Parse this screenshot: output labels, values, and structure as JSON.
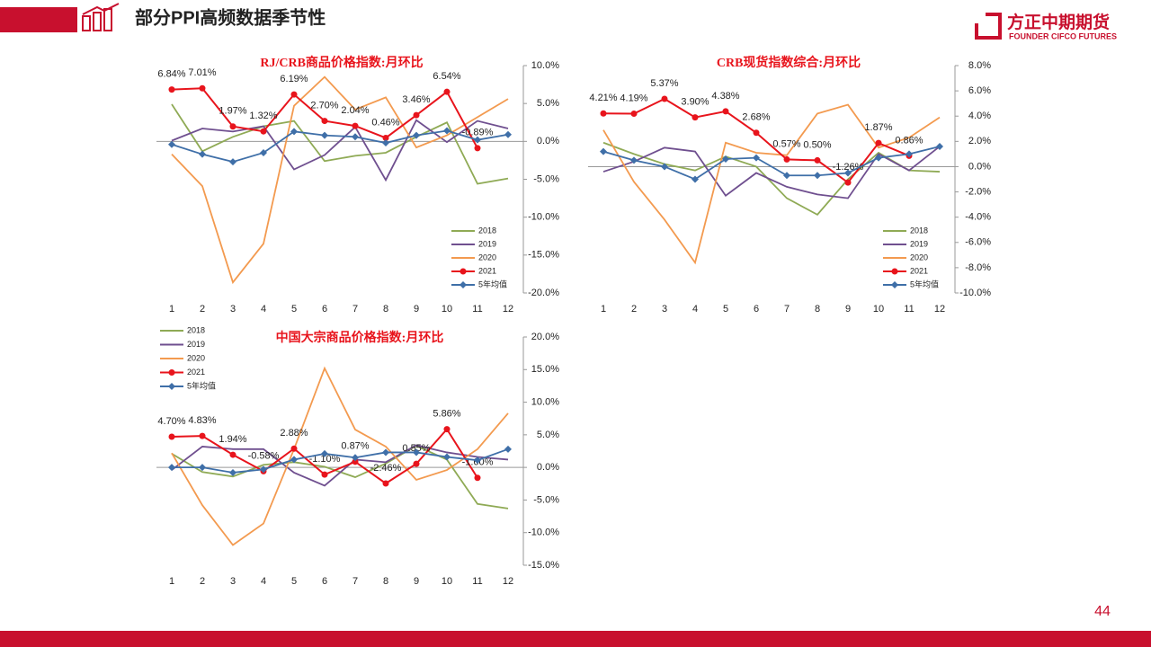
{
  "header": {
    "title": "部分PPI高频数据季节性",
    "logo": "方正中期期货",
    "logo_en": "FOUNDER CIFCO FUTURES",
    "page": 44
  },
  "chart_data": [
    {
      "type": "line",
      "title": "RJ/CRB商品价格指数:月环比",
      "legend": "lower right",
      "categories": [
        "1",
        "2",
        "3",
        "4",
        "5",
        "6",
        "7",
        "8",
        "9",
        "10",
        "11",
        "12"
      ],
      "ylim": [
        -20,
        10
      ],
      "yticks": [
        {
          "value": -20,
          "label": "-20.0%"
        },
        {
          "value": -15,
          "label": "-15.0%"
        },
        {
          "value": -10,
          "label": "-10.0%"
        },
        {
          "value": -5,
          "label": "-5.0%"
        },
        {
          "value": 0,
          "label": "0.0%"
        },
        {
          "value": 5,
          "label": "5.0%"
        },
        {
          "value": 10,
          "label": "10.0%"
        }
      ],
      "series": [
        {
          "name": "2018",
          "color": "#8faa55",
          "values": [
            4.9,
            -1.3,
            0.6,
            2.0,
            2.7,
            -2.6,
            -1.9,
            -1.5,
            0.6,
            2.5,
            -5.6,
            -4.9
          ]
        },
        {
          "name": "2019",
          "color": "#6f4f8f",
          "values": [
            0.1,
            1.7,
            1.3,
            2.0,
            -3.7,
            -1.8,
            1.9,
            -5.1,
            2.8,
            -0.1,
            2.7,
            1.7
          ]
        },
        {
          "name": "2020",
          "color": "#f39a4f",
          "values": [
            -1.7,
            -5.9,
            -18.6,
            -13.5,
            4.7,
            8.5,
            4.2,
            5.8,
            -0.8,
            0.8,
            3.2,
            5.6
          ]
        },
        {
          "name": "2021",
          "color": "#e8141c",
          "marker": "circle",
          "values": [
            6.84,
            7.01,
            1.97,
            1.32,
            6.19,
            2.7,
            2.04,
            0.46,
            3.46,
            6.54,
            -0.89,
            null
          ],
          "value_labels": [
            "6.84%",
            "7.01%",
            "1.97%",
            "1.32%",
            "6.19%",
            "2.70%",
            "2.04%",
            "0.46%",
            "3.46%",
            "6.54%",
            "-0.89%",
            null
          ]
        },
        {
          "name": "5年均值",
          "color": "#3f6fa8",
          "marker": "diamond",
          "values": [
            -0.4,
            -1.7,
            -2.7,
            -1.5,
            1.3,
            0.8,
            0.6,
            -0.2,
            0.8,
            1.4,
            0.2,
            0.9
          ]
        }
      ]
    },
    {
      "type": "line",
      "title": "CRB现货指数综合:月环比",
      "legend": "lower right",
      "categories": [
        "1",
        "2",
        "3",
        "4",
        "5",
        "6",
        "7",
        "8",
        "9",
        "10",
        "11",
        "12"
      ],
      "ylim": [
        -10,
        8
      ],
      "yticks": [
        {
          "value": -10,
          "label": "-10.0%"
        },
        {
          "value": -8,
          "label": "-8.0%"
        },
        {
          "value": -6,
          "label": "-6.0%"
        },
        {
          "value": -4,
          "label": "-4.0%"
        },
        {
          "value": -2,
          "label": "-2.0%"
        },
        {
          "value": 0,
          "label": "0.0%"
        },
        {
          "value": 2,
          "label": "2.0%"
        },
        {
          "value": 4,
          "label": "4.0%"
        },
        {
          "value": 6,
          "label": "6.0%"
        },
        {
          "value": 8,
          "label": "8.0%"
        }
      ],
      "series": [
        {
          "name": "2018",
          "color": "#8faa55",
          "values": [
            1.9,
            1.0,
            0.2,
            -0.3,
            0.8,
            0.0,
            -2.5,
            -3.8,
            -1.0,
            1.1,
            -0.3,
            -0.4
          ]
        },
        {
          "name": "2019",
          "color": "#6f4f8f",
          "values": [
            -0.4,
            0.4,
            1.5,
            1.2,
            -2.3,
            -0.5,
            -1.6,
            -2.2,
            -2.5,
            1.0,
            -0.3,
            1.6
          ]
        },
        {
          "name": "2020",
          "color": "#f39a4f",
          "values": [
            2.9,
            -1.2,
            -4.2,
            -7.6,
            1.9,
            1.1,
            0.9,
            4.2,
            4.9,
            1.5,
            2.3,
            3.9
          ]
        },
        {
          "name": "2021",
          "color": "#e8141c",
          "marker": "circle",
          "values": [
            4.21,
            4.19,
            5.37,
            3.9,
            4.38,
            2.68,
            0.57,
            0.5,
            -1.26,
            1.87,
            0.86,
            null
          ],
          "value_labels": [
            "4.21%",
            "4.19%",
            "5.37%",
            "3.90%",
            "4.38%",
            "2.68%",
            "0.57%",
            "0.50%",
            "-1.26%",
            "1.87%",
            "0.86%",
            null
          ]
        },
        {
          "name": "5年均值",
          "color": "#3f6fa8",
          "marker": "diamond",
          "values": [
            1.2,
            0.5,
            0.0,
            -1.0,
            0.6,
            0.7,
            -0.7,
            -0.7,
            -0.5,
            0.7,
            1.0,
            1.6
          ]
        }
      ]
    },
    {
      "type": "line",
      "title": "中国大宗商品价格指数:月环比",
      "legend": "upper left",
      "categories": [
        "1",
        "2",
        "3",
        "4",
        "5",
        "6",
        "7",
        "8",
        "9",
        "10",
        "11",
        "12"
      ],
      "ylim": [
        -15,
        20
      ],
      "yticks": [
        {
          "value": -15,
          "label": "-15.0%"
        },
        {
          "value": -10,
          "label": "-10.0%"
        },
        {
          "value": -5,
          "label": "-5.0%"
        },
        {
          "value": 0,
          "label": "0.0%"
        },
        {
          "value": 5,
          "label": "5.0%"
        },
        {
          "value": 10,
          "label": "10.0%"
        },
        {
          "value": 15,
          "label": "15.0%"
        },
        {
          "value": 20,
          "label": "20.0%"
        }
      ],
      "series": [
        {
          "name": "2018",
          "color": "#8faa55",
          "values": [
            2.1,
            -0.7,
            -1.4,
            0.4,
            0.8,
            0.1,
            -1.5,
            0.6,
            3.3,
            1.2,
            -5.6,
            -6.3
          ]
        },
        {
          "name": "2019",
          "color": "#6f4f8f",
          "values": [
            -0.4,
            3.2,
            2.8,
            2.8,
            -0.8,
            -2.8,
            1.2,
            0.8,
            3.4,
            2.3,
            1.6,
            1.2
          ]
        },
        {
          "name": "2020",
          "color": "#f39a4f",
          "values": [
            2.2,
            -5.8,
            -11.9,
            -8.6,
            2.8,
            15.2,
            5.8,
            3.2,
            -1.9,
            -0.4,
            2.8,
            8.3
          ]
        },
        {
          "name": "2021",
          "color": "#e8141c",
          "marker": "circle",
          "values": [
            4.7,
            4.83,
            1.94,
            -0.58,
            2.88,
            -1.1,
            0.87,
            -2.46,
            0.55,
            5.86,
            -1.6,
            null
          ],
          "value_labels": [
            "4.70%",
            "4.83%",
            "1.94%",
            "-0.58%",
            "2.88%",
            "-1.10%",
            "0.87%",
            "-2.46%",
            "0.55%",
            "5.86%",
            "-1.60%",
            null
          ]
        },
        {
          "name": "5年均值",
          "color": "#3f6fa8",
          "marker": "diamond",
          "values": [
            0.0,
            0.0,
            -0.8,
            -0.3,
            1.2,
            2.1,
            1.5,
            2.3,
            2.3,
            1.6,
            1.1,
            2.8
          ]
        }
      ]
    }
  ]
}
